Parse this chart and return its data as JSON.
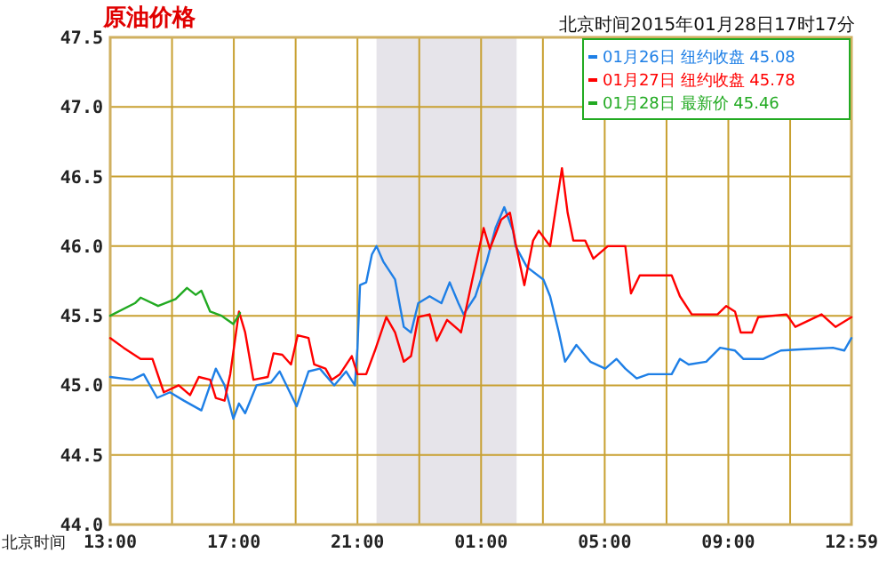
{
  "chart_data": {
    "type": "line",
    "title": "原油价格",
    "subtitle": "北京时间2015年01月28日17时17分",
    "xlabel": "北京时间",
    "xlim": [
      "2015-01-28T13:00",
      "2015-01-29T12:59"
    ],
    "xticks": [
      {
        "value": "2015-01-28T13:00",
        "label": "13:00"
      },
      {
        "value": "2015-01-28T15:00",
        "label": null
      },
      {
        "value": "2015-01-28T17:00",
        "label": "17:00"
      },
      {
        "value": "2015-01-28T19:00",
        "label": null
      },
      {
        "value": "2015-01-28T21:00",
        "label": "21:00"
      },
      {
        "value": "2015-01-28T23:00",
        "label": null
      },
      {
        "value": "2015-01-29T01:00",
        "label": "01:00"
      },
      {
        "value": "2015-01-29T03:00",
        "label": null
      },
      {
        "value": "2015-01-29T05:00",
        "label": "05:00"
      },
      {
        "value": "2015-01-29T07:00",
        "label": null
      },
      {
        "value": "2015-01-29T09:00",
        "label": "09:00"
      },
      {
        "value": "2015-01-29T11:00",
        "label": null
      },
      {
        "value": "2015-01-29T12:59",
        "label": "12:59"
      }
    ],
    "ylim": [
      44,
      47.5
    ],
    "yticks": [
      {
        "value": 44,
        "label": "44.0"
      },
      {
        "value": 44.5,
        "label": "44.5"
      },
      {
        "value": 45,
        "label": "45.0"
      },
      {
        "value": 45.5,
        "label": "45.5"
      },
      {
        "value": 46,
        "label": "46.0"
      },
      {
        "value": 46.5,
        "label": "46.5"
      },
      {
        "value": 47,
        "label": "47.0"
      },
      {
        "value": 47.5,
        "label": "47.5"
      }
    ],
    "grid": true,
    "legend": "top right",
    "bands": [
      {
        "axis": "x",
        "from": "2015-01-28T21:37",
        "to": "2015-01-29T02:09",
        "color": "#e6e4ea"
      }
    ],
    "series": [
      {
        "name": "01月26日 纽约收盘 45.08",
        "color": "#1e7fe6",
        "x": [
          "2015-01-28T13:00",
          "2015-01-28T13:43",
          "2015-01-28T14:05",
          "2015-01-28T14:31",
          "2015-01-28T14:56",
          "2015-01-28T15:23",
          "2015-01-28T15:57",
          "2015-01-28T16:25",
          "2015-01-28T16:42",
          "2015-01-28T16:59",
          "2015-01-28T17:10",
          "2015-01-28T17:22",
          "2015-01-28T17:44",
          "2015-01-28T18:12",
          "2015-01-28T18:29",
          "2015-01-28T19:02",
          "2015-01-28T19:25",
          "2015-01-28T19:47",
          "2015-01-28T20:15",
          "2015-01-28T20:38",
          "2015-01-28T20:55",
          "2015-01-28T21:00",
          "2015-01-28T21:05",
          "2015-01-28T21:17",
          "2015-01-28T21:28",
          "2015-01-28T21:37",
          "2015-01-28T21:50",
          "2015-01-28T22:13",
          "2015-01-28T22:30",
          "2015-01-28T22:44",
          "2015-01-28T22:58",
          "2015-01-28T23:20",
          "2015-01-28T23:43",
          "2015-01-28T23:59",
          "2015-01-29T00:16",
          "2015-01-29T00:26",
          "2015-01-29T00:49",
          "2015-01-29T01:11",
          "2015-01-29T01:28",
          "2015-01-29T01:45",
          "2015-01-29T02:02",
          "2015-01-29T02:07",
          "2015-01-29T02:29",
          "2015-01-29T03:01",
          "2015-01-29T03:14",
          "2015-01-29T03:31",
          "2015-01-29T03:43",
          "2015-01-29T04:05",
          "2015-01-29T04:32",
          "2015-01-29T05:01",
          "2015-01-29T05:23",
          "2015-01-29T05:40",
          "2015-01-29T06:02",
          "2015-01-29T06:25",
          "2015-01-29T07:10",
          "2015-01-29T07:26",
          "2015-01-29T07:43",
          "2015-01-29T08:17",
          "2015-01-29T08:44",
          "2015-01-29T09:13",
          "2015-01-29T09:29",
          "2015-01-29T10:08",
          "2015-01-29T10:42",
          "2015-01-29T11:27",
          "2015-01-29T12:23",
          "2015-01-29T12:45",
          "2015-01-29T12:59"
        ],
        "values": [
          45.06,
          45.04,
          45.08,
          44.91,
          44.95,
          44.89,
          44.82,
          45.12,
          45.0,
          44.76,
          44.87,
          44.8,
          45.0,
          45.02,
          45.1,
          44.85,
          45.1,
          45.12,
          45.0,
          45.1,
          45.0,
          45.27,
          45.72,
          45.74,
          45.94,
          46.0,
          45.89,
          45.76,
          45.42,
          45.38,
          45.59,
          45.64,
          45.59,
          45.74,
          45.59,
          45.51,
          45.64,
          45.89,
          46.13,
          46.28,
          46.11,
          46.0,
          45.85,
          45.76,
          45.64,
          45.38,
          45.17,
          45.29,
          45.17,
          45.12,
          45.19,
          45.12,
          45.05,
          45.08,
          45.08,
          45.19,
          45.15,
          45.17,
          45.27,
          45.25,
          45.19,
          45.19,
          45.25,
          45.26,
          45.27,
          45.25,
          45.34
        ]
      },
      {
        "name": "01月27日 纽约收盘 45.78",
        "color": "#ff0000",
        "x": [
          "2015-01-28T13:00",
          "2015-01-28T13:26",
          "2015-01-28T13:59",
          "2015-01-28T14:22",
          "2015-01-28T14:44",
          "2015-01-28T15:13",
          "2015-01-28T15:35",
          "2015-01-28T15:52",
          "2015-01-28T16:14",
          "2015-01-28T16:25",
          "2015-01-28T16:42",
          "2015-01-28T16:53",
          "2015-01-28T17:10",
          "2015-01-28T17:22",
          "2015-01-28T17:38",
          "2015-01-28T18:06",
          "2015-01-28T18:17",
          "2015-01-28T18:34",
          "2015-01-28T18:51",
          "2015-01-28T19:04",
          "2015-01-28T19:25",
          "2015-01-28T19:36",
          "2015-01-28T19:58",
          "2015-01-28T20:10",
          "2015-01-28T20:26",
          "2015-01-28T20:49",
          "2015-01-28T21:00",
          "2015-01-28T21:17",
          "2015-01-28T21:34",
          "2015-01-28T21:56",
          "2015-01-28T22:13",
          "2015-01-28T22:30",
          "2015-01-28T22:44",
          "2015-01-28T22:58",
          "2015-01-28T23:20",
          "2015-01-28T23:34",
          "2015-01-28T23:54",
          "2015-01-29T00:16",
          "2015-01-29T00:21",
          "2015-01-29T00:43",
          "2015-01-29T01:05",
          "2015-01-29T01:17",
          "2015-01-29T01:39",
          "2015-01-29T01:56",
          "2015-01-29T02:07",
          "2015-01-29T02:24",
          "2015-01-29T02:41",
          "2015-01-29T02:52",
          "2015-01-29T03:14",
          "2015-01-29T03:37",
          "2015-01-29T03:48",
          "2015-01-29T03:59",
          "2015-01-29T04:22",
          "2015-01-29T04:38",
          "2015-01-29T05:06",
          "2015-01-29T05:40",
          "2015-01-29T05:51",
          "2015-01-29T06:08",
          "2015-01-29T07:10",
          "2015-01-29T07:26",
          "2015-01-29T07:49",
          "2015-01-29T08:39",
          "2015-01-29T08:56",
          "2015-01-29T09:13",
          "2015-01-29T09:24",
          "2015-01-29T09:46",
          "2015-01-29T09:58",
          "2015-01-29T10:53",
          "2015-01-29T11:10",
          "2015-01-29T12:01",
          "2015-01-29T12:28",
          "2015-01-29T12:59"
        ],
        "values": [
          45.34,
          45.27,
          45.19,
          45.19,
          44.95,
          45.0,
          44.93,
          45.06,
          45.04,
          44.91,
          44.89,
          45.08,
          45.53,
          45.38,
          45.04,
          45.06,
          45.23,
          45.22,
          45.15,
          45.36,
          45.34,
          45.15,
          45.12,
          45.04,
          45.08,
          45.21,
          45.08,
          45.08,
          45.25,
          45.49,
          45.38,
          45.17,
          45.21,
          45.49,
          45.51,
          45.32,
          45.47,
          45.4,
          45.38,
          45.76,
          46.13,
          45.98,
          46.19,
          46.24,
          46.02,
          45.72,
          46.04,
          46.11,
          46.0,
          46.56,
          46.24,
          46.04,
          46.04,
          45.91,
          46.0,
          46.0,
          45.66,
          45.79,
          45.79,
          45.64,
          45.51,
          45.51,
          45.57,
          45.53,
          45.38,
          45.38,
          45.49,
          45.51,
          45.42,
          45.51,
          45.42,
          45.49
        ]
      },
      {
        "name": "01月28日 最新价 45.46",
        "color": "#22aa22",
        "x": [
          "2015-01-28T13:00",
          "2015-01-28T13:48",
          "2015-01-28T13:59",
          "2015-01-28T14:33",
          "2015-01-28T15:07",
          "2015-01-28T15:29",
          "2015-01-28T15:46",
          "2015-01-28T15:57",
          "2015-01-28T16:14",
          "2015-01-28T16:36",
          "2015-01-28T16:59",
          "2015-01-28T17:12"
        ],
        "values": [
          45.5,
          45.59,
          45.63,
          45.57,
          45.62,
          45.7,
          45.65,
          45.68,
          45.53,
          45.5,
          45.44,
          45.52
        ]
      }
    ]
  }
}
